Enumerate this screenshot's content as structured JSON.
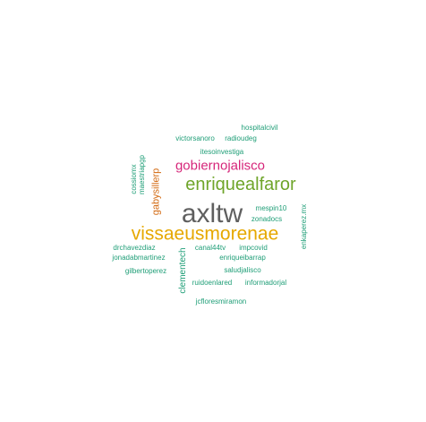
{
  "words": {
    "axltw": {
      "text": "axltw",
      "color": "#5f5f5f"
    },
    "vissaeusmorenae": {
      "text": "vissaeusmorenae",
      "color": "#e6a800"
    },
    "enriquealfaror": {
      "text": "enriquealfaror",
      "color": "#6fa52a"
    },
    "gobiernojalisco": {
      "text": "gobiernojalisco",
      "color": "#d6267a"
    },
    "gabysillerp": {
      "text": "gabysillerp",
      "color": "#d36a12"
    },
    "hospitalcivil": {
      "text": "hospitalcivil",
      "color": "#1f9e77"
    },
    "victorsanoro": {
      "text": "victorsanoro",
      "color": "#1f9e77"
    },
    "radioudeg": {
      "text": "radioudeg",
      "color": "#1f9e77"
    },
    "itesoinvestiga": {
      "text": "itesoinvestiga",
      "color": "#1f9e77"
    },
    "cossiomx": {
      "text": "cossiomx",
      "color": "#1f9e77"
    },
    "maestriapgp": {
      "text": "maestriapgp",
      "color": "#1f9e77"
    },
    "mespin10": {
      "text": "mespin10",
      "color": "#1f9e77"
    },
    "zonadocs": {
      "text": "zonadocs",
      "color": "#1f9e77"
    },
    "enkaperezmx": {
      "text": "enkaperez.mx",
      "color": "#1f9e77"
    },
    "drchavezdiaz": {
      "text": "drchavezdiaz",
      "color": "#1f9e77"
    },
    "canal44tv": {
      "text": "canal44tv",
      "color": "#1f9e77"
    },
    "impcovid": {
      "text": "impcovid",
      "color": "#1f9e77"
    },
    "jonadabmartinez": {
      "text": "jonadabmartinez",
      "color": "#1f9e77"
    },
    "enriqueibarrap": {
      "text": "enriqueibarrap",
      "color": "#1f9e77"
    },
    "clementech": {
      "text": "clementech",
      "color": "#1f9e77"
    },
    "gilbertoperez": {
      "text": "gilbertoperez",
      "color": "#1f9e77"
    },
    "saludjalisco": {
      "text": "saludjalisco",
      "color": "#1f9e77"
    },
    "ruidoenlared": {
      "text": "ruidoenlared",
      "color": "#1f9e77"
    },
    "informadorjal": {
      "text": "informadorjal",
      "color": "#1f9e77"
    },
    "jcfloresmiramon": {
      "text": "jcfloresmiramon",
      "color": "#1f9e77"
    }
  }
}
